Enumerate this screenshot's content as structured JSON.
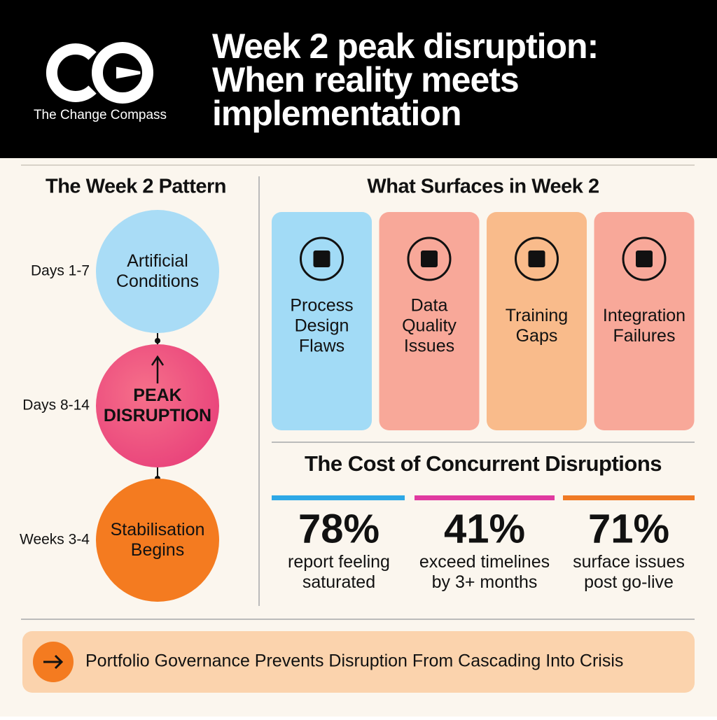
{
  "header": {
    "brand": "The Change Compass",
    "title_lines": [
      "Week 2 peak disruption:",
      "When reality meets",
      "implementation"
    ]
  },
  "pattern": {
    "title": "The Week 2 Pattern",
    "stages": [
      {
        "period": "Days 1-7",
        "label_lines": [
          "Artificial",
          "Conditions"
        ]
      },
      {
        "period": "Days 8-14",
        "label_lines": [
          "PEAK",
          "DISRUPTION"
        ]
      },
      {
        "period": "Weeks 3-4",
        "label_lines": [
          "Stabilisation",
          "Begins"
        ]
      }
    ]
  },
  "surfaces": {
    "title": "What Surfaces in Week 2",
    "cards": [
      {
        "label_lines": [
          "Process",
          "Design",
          "Flaws"
        ]
      },
      {
        "label_lines": [
          "Data",
          "Quality",
          "Issues"
        ]
      },
      {
        "label_lines": [
          "Training",
          "Gaps"
        ]
      },
      {
        "label_lines": [
          "Integration",
          "Failures"
        ]
      }
    ]
  },
  "cost": {
    "title": "The Cost of Concurrent Disruptions",
    "stats": [
      {
        "value": "78%",
        "caption_lines": [
          "report feeling",
          "saturated"
        ]
      },
      {
        "value": "41%",
        "caption_lines": [
          "exceed timelines",
          "by 3+ months"
        ]
      },
      {
        "value": "71%",
        "caption_lines": [
          "surface issues",
          "post go-live"
        ]
      }
    ]
  },
  "footer": {
    "text": "Portfolio Governance Prevents Disruption From Cascading Into Crisis"
  }
}
